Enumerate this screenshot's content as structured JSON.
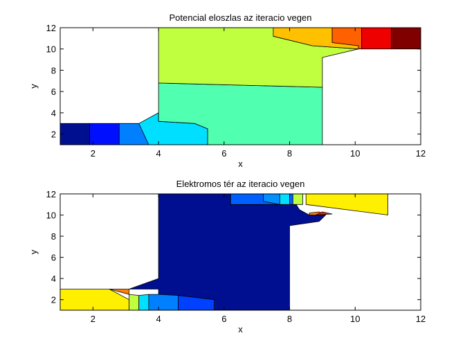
{
  "chart_data": [
    {
      "type": "contourf",
      "title": "Potencial eloszlas az iteracio vegen",
      "xlabel": "x",
      "ylabel": "y",
      "xlim": [
        1,
        12
      ],
      "ylim": [
        1,
        12
      ],
      "xticks": [
        2,
        4,
        6,
        8,
        10,
        12
      ],
      "yticks": [
        2,
        4,
        6,
        8,
        10,
        12
      ],
      "grid": false,
      "colormap": "jet",
      "regions": [
        {
          "color": "#000f8f",
          "points": [
            [
              1,
              1
            ],
            [
              1.9,
              1
            ],
            [
              1.9,
              3
            ],
            [
              1,
              3
            ]
          ]
        },
        {
          "color": "#0010ff",
          "points": [
            [
              1.9,
              1
            ],
            [
              2.8,
              1
            ],
            [
              2.8,
              3
            ],
            [
              1.9,
              3
            ]
          ]
        },
        {
          "color": "#0080ff",
          "points": [
            [
              2.8,
              1
            ],
            [
              3.7,
              1
            ],
            [
              3.7,
              2.2
            ],
            [
              3.4,
              3
            ],
            [
              2.8,
              3
            ]
          ]
        },
        {
          "color": "#00dfff",
          "points": [
            [
              3.7,
              1
            ],
            [
              5.5,
              1
            ],
            [
              5.5,
              2.5
            ],
            [
              5.1,
              3
            ],
            [
              4,
              3.2
            ],
            [
              4,
              4
            ],
            [
              3.4,
              3
            ]
          ]
        },
        {
          "color": "#50ffaf",
          "points": [
            [
              5.5,
              1
            ],
            [
              9,
              1
            ],
            [
              9,
              6.4
            ],
            [
              4,
              6.8
            ],
            [
              4,
              3.2
            ],
            [
              5.1,
              3
            ],
            [
              5.5,
              2.5
            ]
          ]
        },
        {
          "color": "#bfff40",
          "points": [
            [
              4,
              6.8
            ],
            [
              9,
              6.4
            ],
            [
              9,
              9.2
            ],
            [
              10.1,
              10
            ],
            [
              8.7,
              10.3
            ],
            [
              7.5,
              11.2
            ],
            [
              7.5,
              12
            ],
            [
              4,
              12
            ]
          ]
        },
        {
          "color": "#ffc000",
          "points": [
            [
              7.5,
              11.2
            ],
            [
              8.7,
              10.3
            ],
            [
              10.1,
              10
            ],
            [
              10.1,
              10.3
            ],
            [
              9.3,
              10.6
            ],
            [
              9.3,
              12
            ],
            [
              7.5,
              12
            ]
          ]
        },
        {
          "color": "#ff6000",
          "points": [
            [
              9.3,
              10.6
            ],
            [
              10.1,
              10.3
            ],
            [
              10.1,
              10
            ],
            [
              10.2,
              10
            ],
            [
              10.2,
              12
            ],
            [
              9.3,
              12
            ]
          ]
        },
        {
          "color": "#ef0000",
          "points": [
            [
              10.2,
              10
            ],
            [
              11.1,
              10
            ],
            [
              11.1,
              12
            ],
            [
              10.2,
              12
            ]
          ]
        },
        {
          "color": "#800000",
          "points": [
            [
              11.1,
              10
            ],
            [
              12,
              10
            ],
            [
              12,
              12
            ],
            [
              11.1,
              12
            ]
          ]
        }
      ]
    },
    {
      "type": "contourf",
      "title": "Elektromos tér az iteracio vegen",
      "xlabel": "x",
      "ylabel": "y",
      "xlim": [
        1,
        12
      ],
      "ylim": [
        1,
        12
      ],
      "xticks": [
        2,
        4,
        6,
        8,
        10,
        12
      ],
      "yticks": [
        2,
        4,
        6,
        8,
        10,
        12
      ],
      "grid": false,
      "colormap": "jet",
      "regions": [
        {
          "color": "#000f8f",
          "points": [
            [
              4,
              1
            ],
            [
              8,
              1
            ],
            [
              8,
              9
            ],
            [
              8.9,
              9.4
            ],
            [
              9.1,
              10
            ],
            [
              8.6,
              10
            ],
            [
              8.3,
              10.5
            ],
            [
              8.2,
              11
            ],
            [
              6.2,
              11
            ],
            [
              6.2,
              12
            ],
            [
              4,
              12
            ],
            [
              4,
              4
            ],
            [
              3.1,
              3
            ],
            [
              4,
              3
            ],
            [
              4,
              1
            ]
          ]
        },
        {
          "color": "#0040ff",
          "points": [
            [
              4.6,
              1
            ],
            [
              5.7,
              1
            ],
            [
              5.7,
              2
            ],
            [
              4.6,
              2.4
            ]
          ]
        },
        {
          "color": "#ffef00",
          "points": [
            [
              1,
              1
            ],
            [
              3.1,
              1
            ],
            [
              3.1,
              2
            ],
            [
              2.5,
              3
            ],
            [
              1,
              3
            ]
          ]
        },
        {
          "color": "#ff8000",
          "points": [
            [
              2.5,
              3
            ],
            [
              3.1,
              2.5
            ],
            [
              3.1,
              3
            ]
          ]
        },
        {
          "color": "#bfff40",
          "points": [
            [
              3.1,
              1
            ],
            [
              3.4,
              1
            ],
            [
              3.4,
              2.4
            ],
            [
              3.1,
              2.5
            ]
          ]
        },
        {
          "color": "#00dfff",
          "points": [
            [
              3.4,
              1
            ],
            [
              3.7,
              1
            ],
            [
              3.7,
              2.5
            ],
            [
              3.4,
              2.4
            ]
          ]
        },
        {
          "color": "#0080ff",
          "points": [
            [
              3.7,
              1
            ],
            [
              4.6,
              1
            ],
            [
              4.6,
              2.4
            ],
            [
              4,
              2.5
            ],
            [
              3.7,
              2.5
            ]
          ]
        },
        {
          "color": "#0060ff",
          "points": [
            [
              6.2,
              11
            ],
            [
              8.2,
              11
            ],
            [
              8.2,
              12
            ],
            [
              6.2,
              12
            ]
          ]
        },
        {
          "color": "#0090ff",
          "points": [
            [
              7.2,
              11.3
            ],
            [
              7.7,
              11
            ],
            [
              7.7,
              12
            ],
            [
              7.2,
              12
            ]
          ]
        },
        {
          "color": "#00dfff",
          "points": [
            [
              7.7,
              11
            ],
            [
              8,
              11
            ],
            [
              8,
              12
            ],
            [
              7.7,
              12
            ]
          ]
        },
        {
          "color": "#bfff40",
          "points": [
            [
              8.1,
              11
            ],
            [
              8.4,
              11
            ],
            [
              8.4,
              12
            ],
            [
              8.1,
              12
            ]
          ]
        },
        {
          "color": "#ffef00",
          "points": [
            [
              8.5,
              11
            ],
            [
              11,
              10
            ],
            [
              11,
              12
            ],
            [
              8.5,
              12
            ]
          ]
        },
        {
          "color": "#ff8000",
          "points": [
            [
              8.6,
              10
            ],
            [
              9.1,
              10
            ],
            [
              8.9,
              10.3
            ],
            [
              8.6,
              10.2
            ]
          ]
        },
        {
          "color": "#ff2000",
          "points": [
            [
              8.8,
              10
            ],
            [
              9.3,
              10.1
            ],
            [
              9,
              10.3
            ]
          ]
        }
      ]
    }
  ]
}
